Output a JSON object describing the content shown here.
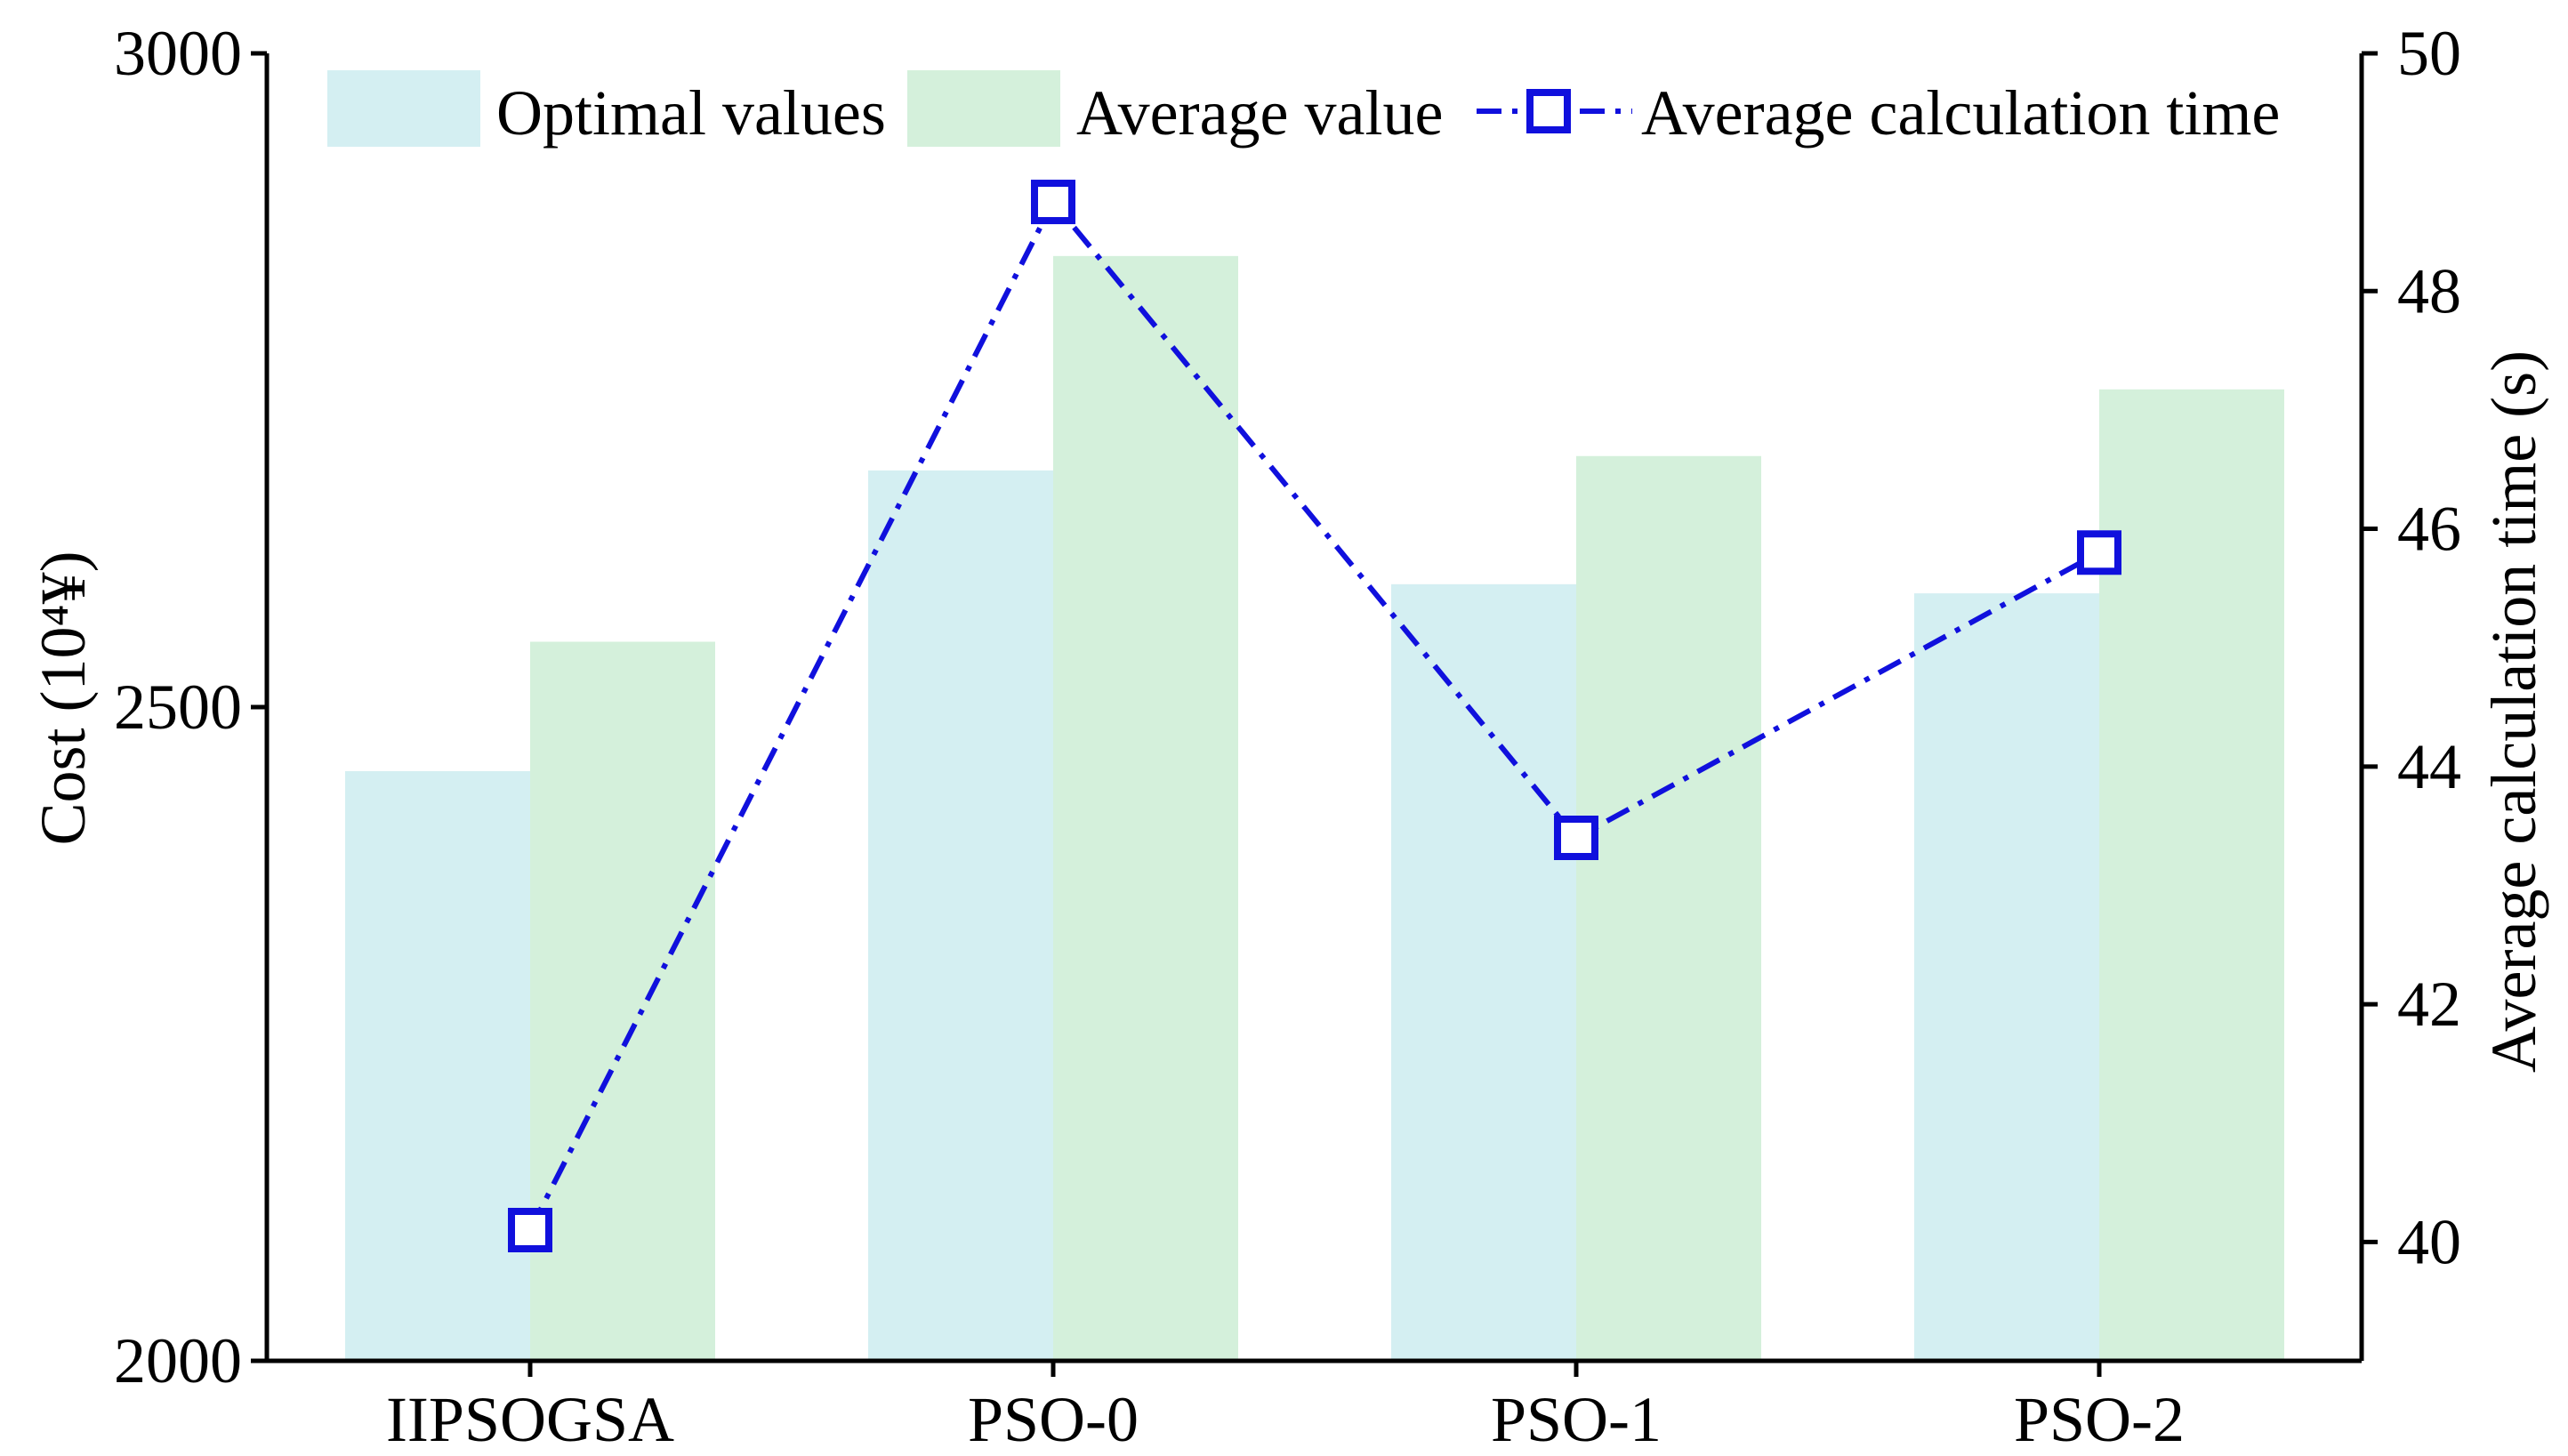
{
  "chart_data": {
    "type": "bar",
    "categories": [
      "IIPSOGSA",
      "PSO-0",
      "PSO-1",
      "PSO-2"
    ],
    "series": [
      {
        "name": "Optimal values",
        "kind": "bar",
        "axis": "left",
        "color": "#d4eff2",
        "values": [
          2451,
          2681,
          2594,
          2587
        ]
      },
      {
        "name": "Average value",
        "kind": "bar",
        "axis": "left",
        "color": "#d4f0db",
        "values": [
          2550,
          2845,
          2692,
          2743
        ]
      },
      {
        "name": "Average calculation time",
        "kind": "line",
        "axis": "right",
        "color": "#1010dd",
        "marker": "square",
        "line_style": "dash-dot",
        "values": [
          40.1,
          48.75,
          43.4,
          45.8
        ]
      }
    ],
    "ylabel": "Cost (10⁴¥)",
    "y2label": "Average calculation time (s)",
    "xlabel": "",
    "ylim": [
      2000,
      3000
    ],
    "y2lim": [
      39,
      50
    ],
    "yticks": [
      2000,
      2500,
      3000
    ],
    "y2ticks": [
      40,
      42,
      44,
      46,
      48,
      50
    ],
    "legend": [
      "Optimal values",
      "Average value",
      "Average calculation time"
    ],
    "legend_position": "top"
  }
}
